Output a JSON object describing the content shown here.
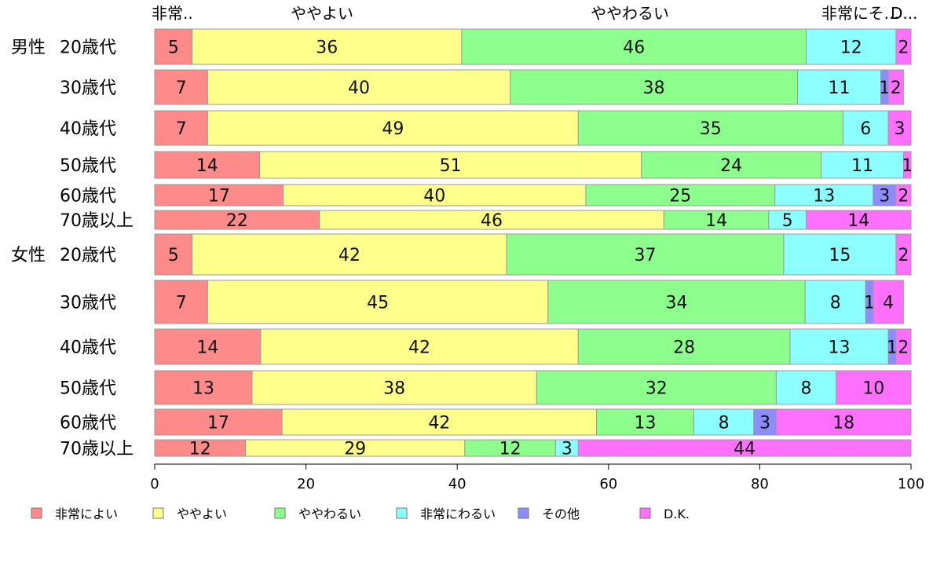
{
  "chart_data": {
    "type": "bar",
    "orientation": "horizontal",
    "stacked": true,
    "xlim": [
      0,
      100
    ],
    "xticks": [
      0,
      20,
      40,
      60,
      80,
      100
    ],
    "top_labels": [
      "非常..",
      "ややよい",
      "ややわるい",
      "非常にそ...",
      "D..."
    ],
    "legend_position": "bottom",
    "series": [
      {
        "name": "非常によい",
        "color": "#FF8A8A"
      },
      {
        "name": "ややよい",
        "color": "#FFFF8C"
      },
      {
        "name": "ややわるい",
        "color": "#8CFF8C"
      },
      {
        "name": "非常にわるい",
        "color": "#8CFFFF"
      },
      {
        "name": "その他",
        "color": "#8C8CFF"
      },
      {
        "name": "D.K.",
        "color": "#FF70FF"
      }
    ],
    "rows": [
      {
        "group": "男性",
        "label": "20歳代",
        "values": [
          5,
          36,
          46,
          12,
          0,
          2
        ]
      },
      {
        "group": "",
        "label": "30歳代",
        "values": [
          7,
          40,
          38,
          11,
          1,
          2
        ]
      },
      {
        "group": "",
        "label": "40歳代",
        "values": [
          7,
          49,
          35,
          6,
          0,
          3
        ]
      },
      {
        "group": "",
        "label": "50歳代",
        "values": [
          14,
          51,
          24,
          11,
          0,
          1
        ]
      },
      {
        "group": "",
        "label": "60歳代",
        "values": [
          17,
          40,
          25,
          13,
          3,
          2
        ]
      },
      {
        "group": "",
        "label": "70歳以上",
        "values": [
          22,
          46,
          14,
          5,
          0,
          14
        ]
      },
      {
        "group": "女性",
        "label": "20歳代",
        "values": [
          5,
          42,
          37,
          15,
          0,
          2
        ]
      },
      {
        "group": "",
        "label": "30歳代",
        "values": [
          7,
          45,
          34,
          8,
          1,
          4
        ]
      },
      {
        "group": "",
        "label": "40歳代",
        "values": [
          14,
          42,
          28,
          13,
          1,
          2
        ]
      },
      {
        "group": "",
        "label": "50歳代",
        "values": [
          13,
          38,
          32,
          8,
          0,
          10
        ]
      },
      {
        "group": "",
        "label": "60歳代",
        "values": [
          17,
          42,
          13,
          8,
          3,
          18
        ]
      },
      {
        "group": "",
        "label": "70歳以上",
        "values": [
          12,
          29,
          12,
          3,
          0,
          44
        ]
      }
    ]
  }
}
